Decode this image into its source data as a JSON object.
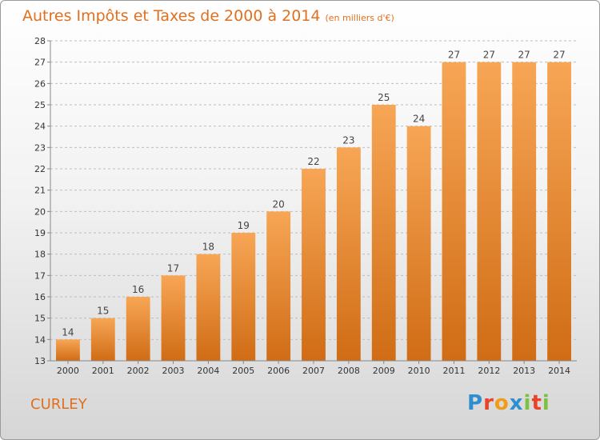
{
  "header": {
    "title": "Autres Impôts et Taxes de 2000 à 2014",
    "unit": "(en milliers d'€)"
  },
  "footer": {
    "commune": "CURLEY",
    "logo_letters": [
      "P",
      "r",
      "o",
      "x",
      "i",
      "t",
      "i"
    ]
  },
  "colors": {
    "accent": "#e07020",
    "bar_top": "#f7a655",
    "bar_bottom": "#d06c15",
    "grid": "#bdbdbd",
    "logo": [
      "#2e8fd0",
      "#e8442a",
      "#ef9c1a",
      "#2e8fd0",
      "#7cc242",
      "#e8442a",
      "#7cc242"
    ]
  },
  "chart_data": {
    "type": "bar",
    "title": "Autres Impôts et Taxes de 2000 à 2014",
    "subtitle": "(en milliers d'€)",
    "categories": [
      "2000",
      "2001",
      "2002",
      "2003",
      "2004",
      "2005",
      "2006",
      "2007",
      "2008",
      "2009",
      "2010",
      "2011",
      "2012",
      "2013",
      "2014"
    ],
    "values": [
      14,
      15,
      16,
      17,
      18,
      19,
      20,
      22,
      23,
      25,
      24,
      27,
      27,
      27,
      27
    ],
    "yticks": [
      13,
      14,
      15,
      16,
      17,
      18,
      19,
      20,
      21,
      22,
      23,
      24,
      25,
      26,
      27,
      28
    ],
    "ylim": [
      13,
      28
    ],
    "grid": true,
    "xlabel": "",
    "ylabel": ""
  }
}
